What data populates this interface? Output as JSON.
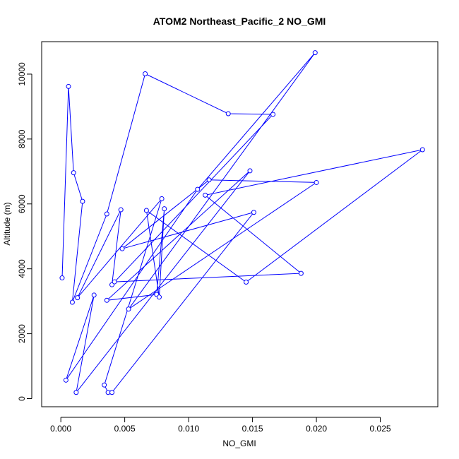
{
  "chart_data": {
    "type": "line",
    "title": "ATOM2 Northeast_Pacific_2 NO_GMI",
    "xlabel": "NO_GMI",
    "ylabel": "Altitude (m)",
    "xlim": [
      -0.0015,
      0.0295
    ],
    "ylim": [
      -250,
      11000
    ],
    "x_ticks": [
      0.0,
      0.005,
      0.01,
      0.015,
      0.02,
      0.025
    ],
    "x_tick_labels": [
      "0.000",
      "0.005",
      "0.010",
      "0.015",
      "0.020",
      "0.025"
    ],
    "y_ticks": [
      0,
      2000,
      4000,
      6000,
      8000,
      10000
    ],
    "y_tick_labels": [
      "0",
      "2000",
      "4000",
      "6000",
      "8000",
      "10000"
    ],
    "grid": false,
    "legend": "none",
    "series_color": "#0000ff",
    "series": [
      {
        "x": [
          0.0001,
          0.0006,
          0.001,
          0.0017,
          0.0009,
          0.0036,
          0.0066,
          0.0131,
          0.0166,
          0.004,
          0.0047,
          0.0013,
          0.0079,
          0.0034,
          0.0037,
          0.004,
          0.0151,
          0.0048,
          0.0116,
          0.02,
          0.0053,
          0.0199,
          0.0107,
          0.0004,
          0.0026,
          0.0012,
          0.0148,
          0.0036,
          0.0075,
          0.0081,
          0.0077,
          0.0067,
          0.0145,
          0.0283,
          0.0113,
          0.0188,
          0.0042
        ],
        "y": [
          3720,
          9620,
          6960,
          6080,
          2970,
          5690,
          10010,
          8780,
          8760,
          3510,
          5820,
          3110,
          6160,
          420,
          190,
          190,
          5740,
          4620,
          6740,
          6660,
          2760,
          10660,
          6450,
          570,
          3190,
          190,
          7020,
          3030,
          3210,
          5850,
          3130,
          5800,
          3590,
          7670,
          6270,
          3860,
          3600
        ]
      }
    ]
  }
}
